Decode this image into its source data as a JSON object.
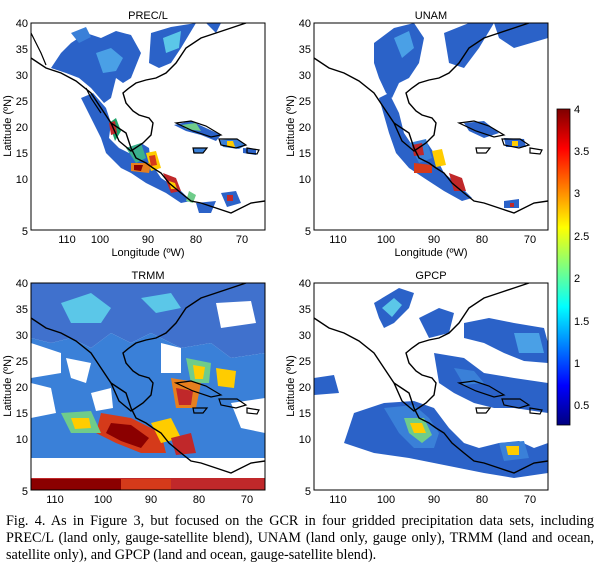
{
  "figure": {
    "colorbar": {
      "ticks": [
        "4",
        "3.5",
        "3",
        "2.5",
        "2",
        "1.5",
        "1",
        "0.5"
      ],
      "colors": [
        "#00007f",
        "#0000ff",
        "#007fff",
        "#00ffff",
        "#7fff7f",
        "#ffff00",
        "#ff7f00",
        "#ff0000",
        "#7f0000"
      ]
    },
    "panels": [
      {
        "key": "precl",
        "title": "PREC/L",
        "xlabel": "Longitude (ºW)",
        "ylabel": "Latitude (ºN)"
      },
      {
        "key": "unam",
        "title": "UNAM",
        "xlabel": "Longitude (ºW)",
        "ylabel": "Latitude (ºN)"
      },
      {
        "key": "trmm",
        "title": "TRMM",
        "xlabel": "",
        "ylabel": "Latitude (ºN)"
      },
      {
        "key": "gpcp",
        "title": "GPCP",
        "xlabel": "",
        "ylabel": "Latitude (ºN)"
      }
    ],
    "x_ticks": [
      "110",
      "100",
      "90",
      "80",
      "70"
    ],
    "y_ticks": [
      "40",
      "35",
      "30",
      "25",
      "20",
      "15",
      "10",
      "5"
    ]
  },
  "caption": {
    "text": "Fig. 4. As in Figure 3, but focused on the GCR in four gridded precipitation data sets, including PREC/L (land only, gauge-satellite blend), UNAM (land only, gauge only), TRMM (land and ocean, satellite only), and GPCP (land and ocean, gauge-satellite blend)."
  }
}
